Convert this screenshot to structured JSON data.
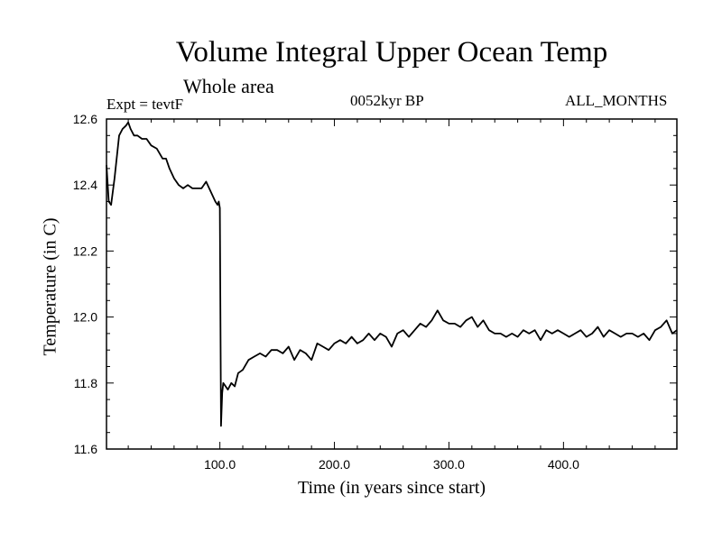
{
  "header": {
    "title": "Volume Integral Upper Ocean Temp",
    "subtitle": "Whole area",
    "experiment": "Expt = tevtF",
    "period": "0052kyr BP",
    "months": "ALL_MONTHS"
  },
  "chart_data": {
    "type": "line",
    "title": "Volume Integral Upper Ocean Temp",
    "subtitle": "Whole area",
    "xlabel": "Time (in years since start)",
    "ylabel": "Temperature (in C)",
    "xlim": [
      1,
      499
    ],
    "ylim": [
      11.6,
      12.6
    ],
    "x_ticks": [
      100,
      200,
      300,
      400
    ],
    "x_tick_labels": [
      "100.0",
      "200.0",
      "300.0",
      "400.0"
    ],
    "y_ticks": [
      11.6,
      11.8,
      12.0,
      12.2,
      12.4,
      12.6
    ],
    "y_tick_labels": [
      "11.6",
      "11.8",
      "12.0",
      "12.2",
      "12.4",
      "12.6"
    ],
    "grid": false,
    "line_color": "#000000",
    "series": [
      {
        "x": [
          1,
          3,
          5,
          8,
          12,
          15,
          18,
          20,
          22,
          25,
          28,
          32,
          36,
          40,
          45,
          50,
          53,
          56,
          60,
          64,
          68,
          72,
          76,
          80,
          84,
          88,
          92,
          96,
          98,
          99,
          100,
          101,
          102,
          103,
          105,
          107,
          110,
          113,
          116,
          120,
          125,
          130,
          135,
          140,
          145,
          150,
          155,
          160,
          165,
          170,
          175,
          180,
          185,
          190,
          195,
          200,
          205,
          210,
          215,
          220,
          225,
          230,
          235,
          240,
          245,
          250,
          255,
          260,
          265,
          270,
          275,
          280,
          285,
          290,
          295,
          300,
          305,
          310,
          315,
          320,
          325,
          330,
          335,
          340,
          345,
          350,
          355,
          360,
          365,
          370,
          375,
          380,
          385,
          390,
          395,
          400,
          405,
          410,
          415,
          420,
          425,
          430,
          435,
          440,
          445,
          450,
          455,
          460,
          465,
          470,
          475,
          480,
          485,
          490,
          495,
          499
        ],
        "y": [
          12.46,
          12.35,
          12.34,
          12.42,
          12.55,
          12.57,
          12.58,
          12.59,
          12.57,
          12.55,
          12.55,
          12.54,
          12.54,
          12.52,
          12.51,
          12.48,
          12.48,
          12.45,
          12.42,
          12.4,
          12.39,
          12.4,
          12.39,
          12.39,
          12.39,
          12.41,
          12.38,
          12.35,
          12.34,
          12.35,
          12.33,
          11.67,
          11.77,
          11.8,
          11.79,
          11.78,
          11.8,
          11.79,
          11.83,
          11.84,
          11.87,
          11.88,
          11.89,
          11.88,
          11.9,
          11.9,
          11.89,
          11.91,
          11.87,
          11.9,
          11.89,
          11.87,
          11.92,
          11.91,
          11.9,
          11.92,
          11.93,
          11.92,
          11.94,
          11.92,
          11.93,
          11.95,
          11.93,
          11.95,
          11.94,
          11.91,
          11.95,
          11.96,
          11.94,
          11.96,
          11.98,
          11.97,
          11.99,
          12.02,
          11.99,
          11.98,
          11.98,
          11.97,
          11.99,
          12.0,
          11.97,
          11.99,
          11.96,
          11.95,
          11.95,
          11.94,
          11.95,
          11.94,
          11.96,
          11.95,
          11.96,
          11.93,
          11.96,
          11.95,
          11.96,
          11.95,
          11.94,
          11.95,
          11.96,
          11.94,
          11.95,
          11.97,
          11.94,
          11.96,
          11.95,
          11.94,
          11.95,
          11.95,
          11.94,
          11.95,
          11.93,
          11.96,
          11.97,
          11.99,
          11.95,
          11.96
        ]
      }
    ]
  }
}
